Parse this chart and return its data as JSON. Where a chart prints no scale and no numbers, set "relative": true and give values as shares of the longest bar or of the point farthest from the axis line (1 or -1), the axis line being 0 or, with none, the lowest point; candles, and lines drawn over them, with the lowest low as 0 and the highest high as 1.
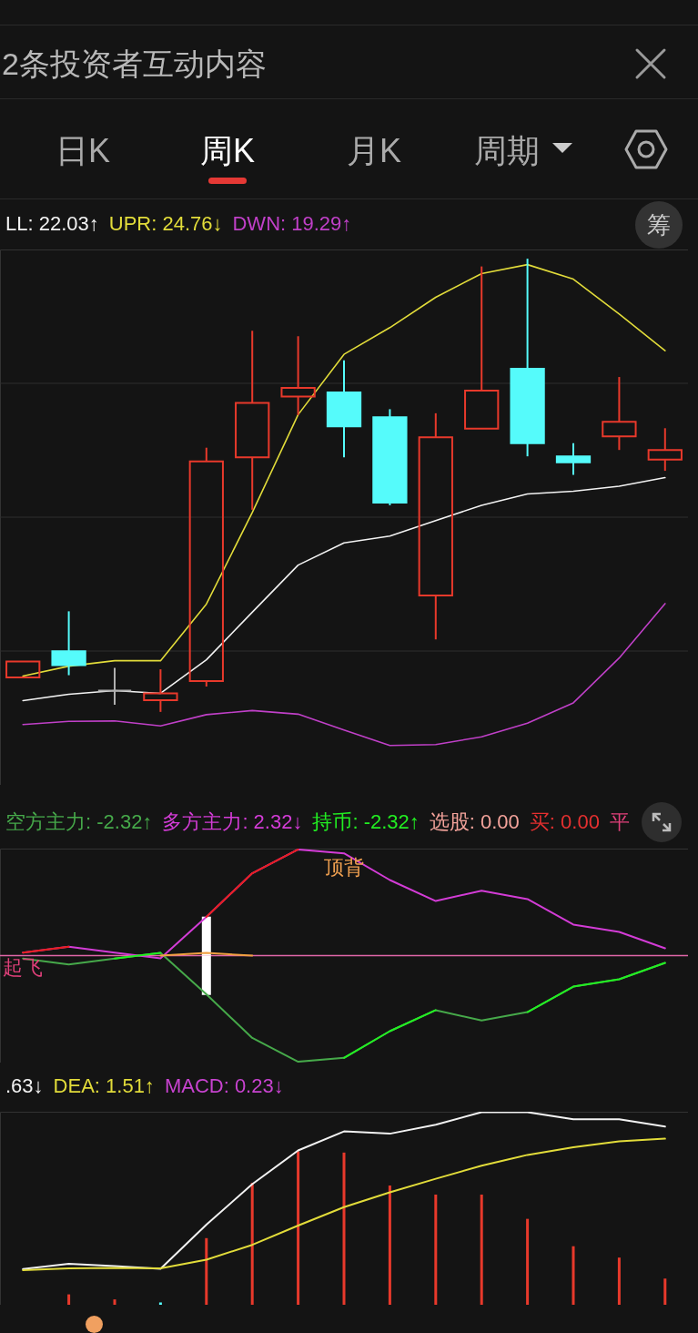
{
  "chart_data": [
    {
      "type": "other",
      "title": "2条投资者互动内容",
      "annotations": [
        "日K",
        "周K",
        "月K",
        "周期",
        "筹"
      ]
    },
    {
      "type": "candlestick",
      "relative": true,
      "grid": true,
      "legend": "top left",
      "categories": [
        null,
        null,
        null,
        null,
        null,
        null,
        null,
        null,
        null,
        null,
        null,
        null,
        null,
        null,
        null
      ],
      "ohlc": [
        [
          0.076,
          0.111,
          0.076,
          0.111
        ],
        [
          0.134,
          0.222,
          0.081,
          0.103
        ],
        [
          0.047,
          0.097,
          0.016,
          0.047
        ],
        [
          0.026,
          0.094,
          0,
          0.041
        ],
        [
          0.068,
          0.583,
          0.056,
          0.553
        ],
        [
          0.562,
          0.841,
          0.446,
          0.682
        ],
        [
          0.696,
          0.829,
          0.655,
          0.715
        ],
        [
          0.705,
          0.776,
          0.562,
          0.63
        ],
        [
          0.65,
          0.668,
          0.456,
          0.462
        ],
        [
          0.257,
          0.659,
          0.16,
          0.606
        ],
        [
          0.625,
          0.983,
          0.625,
          0.709
        ],
        [
          0.757,
          1,
          0.564,
          0.593
        ],
        [
          0.564,
          0.593,
          0.523,
          0.551
        ],
        [
          0.608,
          0.739,
          0.578,
          0.64
        ],
        [
          0.557,
          0.626,
          0.532,
          0.578
        ]
      ],
      "colors": [
        "#e8392b",
        "#55fbfb",
        "#b0b0b0",
        "#e8392b",
        "#e8392b",
        "#e8392b",
        "#e8392b",
        "#55fbfb",
        "#55fbfb",
        "#e8392b",
        "#e8392b",
        "#55fbfb",
        "#55fbfb",
        "#e8392b",
        "#e8392b"
      ],
      "series": [
        {
          "name": "LL: 22.03↑",
          "type": "line",
          "color": "#f2f2f2",
          "values": [
            0.025,
            0.039,
            0.047,
            0.041,
            0.115,
            0.22,
            0.324,
            0.373,
            0.388,
            0.422,
            0.456,
            0.481,
            0.487,
            0.498,
            0.517
          ]
        },
        {
          "name": "UPR: 24.76↓",
          "type": "line",
          "color": "#e2dc3a",
          "values": [
            0.079,
            0.101,
            0.113,
            0.113,
            0.238,
            0.44,
            0.656,
            0.789,
            0.848,
            0.915,
            0.967,
            0.987,
            0.955,
            0.878,
            0.797
          ]
        },
        {
          "name": "DWN: 19.29↑",
          "type": "line",
          "color": "#c040c8",
          "values": [
            -0.028,
            -0.021,
            -0.02,
            -0.031,
            -0.006,
            0.003,
            -0.005,
            -0.04,
            -0.074,
            -0.072,
            -0.055,
            -0.025,
            0.02,
            0.119,
            0.239
          ]
        }
      ]
    },
    {
      "type": "line",
      "relative": true,
      "legend": "top left",
      "categories": [
        null,
        null,
        null,
        null,
        null,
        null,
        null,
        null,
        null,
        null,
        null,
        null,
        null,
        null,
        null
      ],
      "ref_lines": [
        {
          "axis": "y",
          "value": 0,
          "color": "#e066a8"
        }
      ],
      "series": [
        {
          "name": "空方主力: -2.32↑",
          "color": "#46a94a",
          "values": [
            -0.028,
            -0.083,
            -0.027,
            0.025,
            -0.365,
            -0.776,
            -1,
            -0.964,
            -0.712,
            -0.514,
            -0.611,
            -0.532,
            -0.292,
            -0.223,
            -0.069
          ]
        },
        {
          "name": "多方主力: 2.32↓",
          "color": "#d33cd6",
          "values": [
            0.028,
            0.083,
            0.027,
            -0.025,
            0.365,
            0.776,
            1,
            0.964,
            0.712,
            0.514,
            0.611,
            0.532,
            0.292,
            0.223,
            0.069
          ]
        },
        {
          "name": "持币: -2.32↑",
          "color": "#22ee22",
          "values": [
            null,
            null,
            -0.027,
            0.025,
            null,
            null,
            null,
            -0.964,
            -0.712,
            -0.514,
            null,
            -0.532,
            -0.292,
            -0.223,
            -0.069
          ]
        },
        {
          "color": "#e81e1e",
          "values": [
            0.028,
            0.083,
            null,
            null,
            0.365,
            0.776,
            1,
            null,
            null,
            null,
            null,
            null,
            null,
            null,
            null
          ]
        },
        {
          "color": "#f0a040",
          "values": [
            null,
            null,
            null,
            0,
            0.025,
            0,
            null,
            null,
            null,
            null,
            null,
            null,
            null,
            null,
            null
          ]
        },
        {
          "type": "bar",
          "color": "#ffffff",
          "values": [
            null,
            null,
            null,
            null,
            0.367,
            null,
            null,
            null,
            null,
            null,
            null,
            null,
            null,
            null,
            null
          ]
        },
        {
          "type": "bar",
          "color": "#ffffff",
          "values": [
            null,
            null,
            null,
            null,
            -0.371,
            null,
            null,
            null,
            null,
            null,
            null,
            null,
            null,
            null,
            null
          ]
        }
      ],
      "annotations": [
        "顶背",
        "起飞",
        "选股: 0.00",
        "买: 0.00",
        "平"
      ]
    },
    {
      "type": "line",
      "relative": true,
      "legend": "top left",
      "categories": [
        null,
        null,
        null,
        null,
        null,
        null,
        null,
        null,
        null,
        null,
        null,
        null,
        null,
        null,
        null
      ],
      "series": [
        {
          "name": ".63↓",
          "color": "#f2f2f2",
          "values": [
            0.185,
            0.213,
            0.201,
            0.187,
            0.416,
            0.626,
            0.801,
            0.9,
            0.888,
            0.935,
            1,
            1,
            0.963,
            0.963,
            0.925
          ]
        },
        {
          "name": "DEA: 1.51↑",
          "color": "#e2dc3a",
          "values": [
            0.18,
            0.189,
            0.192,
            0.189,
            0.234,
            0.311,
            0.411,
            0.507,
            0.584,
            0.654,
            0.722,
            0.778,
            0.818,
            0.848,
            0.862
          ]
        },
        {
          "name": "MACD: 0.23↓",
          "type": "bar",
          "color": "#c843d0",
          "colors": [
            null,
            "#e8392b",
            "#e8392b",
            "#55fbfb",
            "#e8392b",
            "#e8392b",
            "#e8392b",
            "#e8392b",
            "#e8392b",
            "#e8392b",
            "#e8392b",
            "#e8392b",
            "#e8392b",
            "#e8392b",
            "#e8392b"
          ],
          "values": [
            null,
            0.054,
            0.028,
            0.012,
            0.346,
            0.633,
            0.797,
            0.79,
            0.619,
            0.572,
            0.572,
            0.446,
            0.304,
            0.245,
            0.136
          ]
        }
      ]
    }
  ]
}
